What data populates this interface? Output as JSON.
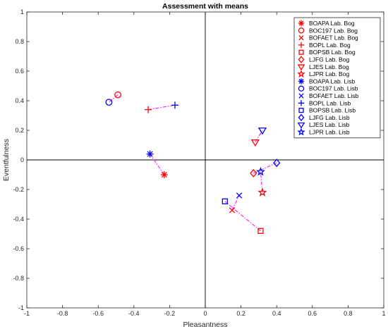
{
  "chart_data": {
    "type": "scatter",
    "title": "Assessment with means",
    "xlabel": "Pleasantness",
    "ylabel": "Eventfulness",
    "xlim": [
      -1,
      1
    ],
    "ylim": [
      -1,
      1
    ],
    "xticks": [
      "-1",
      "-0.8",
      "-0.6",
      "-0.4",
      "-0.2",
      "0",
      "0.2",
      "0.4",
      "0.6",
      "0.8",
      "1"
    ],
    "yticks": [
      "-1",
      "-0.8",
      "-0.6",
      "-0.4",
      "-0.2",
      "0",
      "0.2",
      "0.4",
      "0.6",
      "0.8",
      "1"
    ],
    "grid": false,
    "legend_position": "top-right",
    "colors": {
      "bog": "#ff0000",
      "lisb": "#0000ff",
      "link": "#ff00ff"
    },
    "series": [
      {
        "name": "BOAPA Lab. Bog",
        "marker": "asterisk",
        "group": "bog",
        "x": -0.23,
        "y": -0.1
      },
      {
        "name": "BOC197 Lab. Bog",
        "marker": "circle",
        "group": "bog",
        "x": -0.49,
        "y": 0.44
      },
      {
        "name": "BOFAET Lab. Bog",
        "marker": "x",
        "group": "bog",
        "x": 0.15,
        "y": -0.34
      },
      {
        "name": "BOPL Lab. Bog",
        "marker": "plus",
        "group": "bog",
        "x": -0.32,
        "y": 0.34
      },
      {
        "name": "BOPSB Lab. Bog",
        "marker": "square",
        "group": "bog",
        "x": 0.31,
        "y": -0.48
      },
      {
        "name": "LJFG Lab. Bog",
        "marker": "diamond",
        "group": "bog",
        "x": 0.27,
        "y": -0.09
      },
      {
        "name": "LJES Lab. Bog",
        "marker": "triangle-down",
        "group": "bog",
        "x": 0.28,
        "y": 0.12
      },
      {
        "name": "LJPR Lab. Bog",
        "marker": "star",
        "group": "bog",
        "x": 0.32,
        "y": -0.22
      },
      {
        "name": "BOAPA Lab. Lisb",
        "marker": "asterisk",
        "group": "lisb",
        "x": -0.31,
        "y": 0.04
      },
      {
        "name": "BOC197 Lab. Lisb",
        "marker": "circle",
        "group": "lisb",
        "x": -0.54,
        "y": 0.39
      },
      {
        "name": "BOFAET Lab. Lisb",
        "marker": "x",
        "group": "lisb",
        "x": 0.19,
        "y": -0.24
      },
      {
        "name": "BOPL Lab. Lisb",
        "marker": "plus",
        "group": "lisb",
        "x": -0.17,
        "y": 0.37
      },
      {
        "name": "BOPSB Lab. Lisb",
        "marker": "square",
        "group": "lisb",
        "x": 0.11,
        "y": -0.28
      },
      {
        "name": "LJFG Lab. Lisb",
        "marker": "diamond",
        "group": "lisb",
        "x": 0.4,
        "y": -0.02
      },
      {
        "name": "LJES Lab. Lisb",
        "marker": "triangle-down",
        "group": "lisb",
        "x": 0.32,
        "y": 0.2
      },
      {
        "name": "LJPR Lab. Lisb",
        "marker": "star",
        "group": "lisb",
        "x": 0.31,
        "y": -0.08
      }
    ],
    "links": [
      {
        "from": "BOAPA Lab. Bog",
        "to": "BOAPA Lab. Lisb"
      },
      {
        "from": "BOC197 Lab. Bog",
        "to": "BOC197 Lab. Lisb"
      },
      {
        "from": "BOFAET Lab. Bog",
        "to": "BOFAET Lab. Lisb"
      },
      {
        "from": "BOPL Lab. Bog",
        "to": "BOPL Lab. Lisb"
      },
      {
        "from": "BOPSB Lab. Bog",
        "to": "BOPSB Lab. Lisb"
      },
      {
        "from": "LJFG Lab. Bog",
        "to": "LJFG Lab. Lisb"
      },
      {
        "from": "LJES Lab. Bog",
        "to": "LJES Lab. Lisb"
      },
      {
        "from": "LJPR Lab. Bog",
        "to": "LJPR Lab. Lisb"
      }
    ]
  }
}
